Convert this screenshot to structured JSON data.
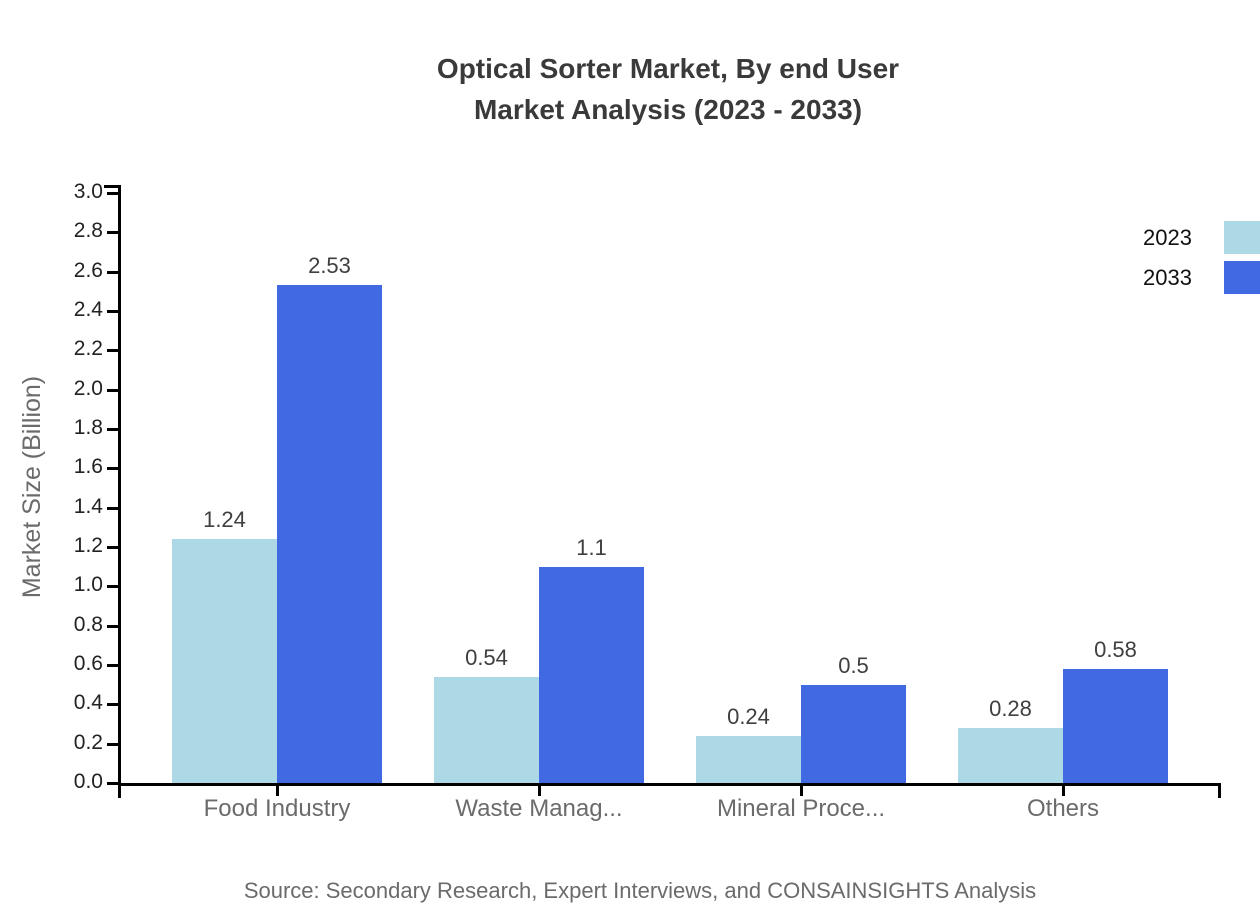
{
  "title": {
    "line1": "Optical Sorter Market, By end User",
    "line2": "Market Analysis (2023 - 2033)"
  },
  "source": "Source: Secondary Research, Expert Interviews, and CONSAINSIGHTS Analysis",
  "chart_data": {
    "type": "bar",
    "title": "Optical Sorter Market, By end User Market Analysis (2023 - 2033)",
    "categories": [
      "Food Industry",
      "Waste Manag...",
      "Mineral Proce...",
      "Others"
    ],
    "series": [
      {
        "name": "2023",
        "color": "#ADD8E6",
        "values": [
          1.24,
          0.54,
          0.24,
          0.28
        ]
      },
      {
        "name": "2033",
        "color": "#4169E1",
        "values": [
          2.53,
          1.1,
          0.5,
          0.58
        ]
      }
    ],
    "xlabel": "",
    "ylabel": "Market Size (Billion)",
    "ylim": [
      0,
      3.0
    ],
    "ytick_step": 0.2,
    "ytick_format_decimals": 1,
    "legend_position": "top-right",
    "grid": false,
    "value_labels": true
  },
  "colors": {
    "axis": "#000000",
    "title_text": "#3a3a3a",
    "tick_text": "#222222",
    "muted_text": "#6b6b6b",
    "value_text": "#3f3f3f"
  }
}
